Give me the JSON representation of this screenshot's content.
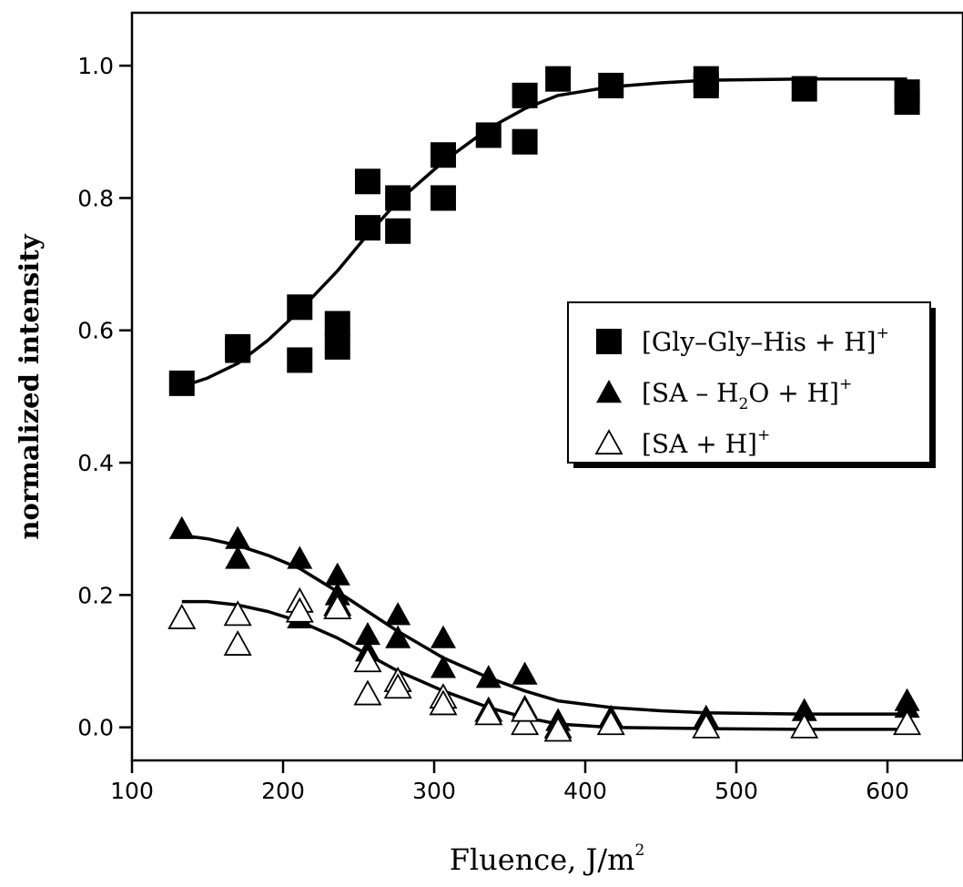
{
  "chart_data": {
    "type": "scatter",
    "title": "",
    "xlabel": "Fluence, J/m",
    "xlabel_sup": "2",
    "ylabel": "normalized intensity",
    "xlim": [
      100,
      650
    ],
    "ylim": [
      -0.05,
      1.08
    ],
    "xticks": [
      100,
      200,
      300,
      400,
      500,
      600
    ],
    "xtick_labels": [
      "100",
      "200",
      "300",
      "400",
      "500",
      "600"
    ],
    "yticks": [
      0.0,
      0.2,
      0.4,
      0.6,
      0.8,
      1.0
    ],
    "ytick_labels": [
      "0.0",
      "0.2",
      "0.4",
      "0.6",
      "0.8",
      "1.0"
    ],
    "grid": false,
    "legend_position": "center-right",
    "series": [
      {
        "name": "[Gly–Gly–His + H]+",
        "legend_parts": [
          {
            "t": "[Gly–Gly–His + H]",
            "style": "normal"
          },
          {
            "t": "+",
            "style": "sup"
          }
        ],
        "marker": "square-filled",
        "points": [
          [
            133,
            0.52
          ],
          [
            170,
            0.57
          ],
          [
            170,
            0.575
          ],
          [
            211,
            0.635
          ],
          [
            211,
            0.555
          ],
          [
            236,
            0.575
          ],
          [
            236,
            0.61
          ],
          [
            256,
            0.825
          ],
          [
            256,
            0.755
          ],
          [
            276,
            0.8
          ],
          [
            276,
            0.75
          ],
          [
            306,
            0.865
          ],
          [
            306,
            0.8
          ],
          [
            336,
            0.895
          ],
          [
            360,
            0.955
          ],
          [
            360,
            0.885
          ],
          [
            382,
            0.98
          ],
          [
            417,
            0.97
          ],
          [
            480,
            0.97
          ],
          [
            480,
            0.98
          ],
          [
            545,
            0.965
          ],
          [
            613,
            0.96
          ],
          [
            613,
            0.945
          ]
        ],
        "fit": [
          [
            133,
            0.515
          ],
          [
            150,
            0.528
          ],
          [
            170,
            0.55
          ],
          [
            190,
            0.585
          ],
          [
            211,
            0.63
          ],
          [
            236,
            0.69
          ],
          [
            256,
            0.745
          ],
          [
            276,
            0.795
          ],
          [
            306,
            0.855
          ],
          [
            336,
            0.905
          ],
          [
            360,
            0.935
          ],
          [
            382,
            0.955
          ],
          [
            417,
            0.968
          ],
          [
            450,
            0.974
          ],
          [
            480,
            0.978
          ],
          [
            545,
            0.98
          ],
          [
            613,
            0.98
          ]
        ]
      },
      {
        "name": "[SA – H2O + H]+",
        "legend_parts": [
          {
            "t": "[SA – H",
            "style": "normal"
          },
          {
            "t": "2",
            "style": "sub"
          },
          {
            "t": "O + H]",
            "style": "normal"
          },
          {
            "t": "+",
            "style": "sup"
          }
        ],
        "marker": "triangle-filled",
        "points": [
          [
            133,
            0.3
          ],
          [
            170,
            0.285
          ],
          [
            170,
            0.255
          ],
          [
            211,
            0.255
          ],
          [
            211,
            0.165
          ],
          [
            236,
            0.23
          ],
          [
            236,
            0.2
          ],
          [
            256,
            0.14
          ],
          [
            256,
            0.115
          ],
          [
            276,
            0.17
          ],
          [
            276,
            0.135
          ],
          [
            306,
            0.135
          ],
          [
            306,
            0.09
          ],
          [
            336,
            0.075
          ],
          [
            360,
            0.08
          ],
          [
            360,
            0.03
          ],
          [
            382,
            0.01
          ],
          [
            417,
            0.015
          ],
          [
            480,
            0.015
          ],
          [
            545,
            0.025
          ],
          [
            613,
            0.04
          ],
          [
            613,
            0.03
          ]
        ],
        "fit": [
          [
            133,
            0.29
          ],
          [
            150,
            0.285
          ],
          [
            170,
            0.275
          ],
          [
            190,
            0.26
          ],
          [
            211,
            0.24
          ],
          [
            236,
            0.205
          ],
          [
            256,
            0.175
          ],
          [
            276,
            0.145
          ],
          [
            306,
            0.105
          ],
          [
            336,
            0.075
          ],
          [
            360,
            0.055
          ],
          [
            382,
            0.04
          ],
          [
            417,
            0.03
          ],
          [
            450,
            0.025
          ],
          [
            480,
            0.022
          ],
          [
            545,
            0.02
          ],
          [
            613,
            0.02
          ]
        ]
      },
      {
        "name": "[SA + H]+",
        "legend_parts": [
          {
            "t": "[SA + H]",
            "style": "normal"
          },
          {
            "t": "+",
            "style": "sup"
          }
        ],
        "marker": "triangle-open",
        "points": [
          [
            133,
            0.165
          ],
          [
            170,
            0.17
          ],
          [
            170,
            0.125
          ],
          [
            211,
            0.19
          ],
          [
            211,
            0.175
          ],
          [
            236,
            0.185
          ],
          [
            236,
            0.18
          ],
          [
            256,
            0.1
          ],
          [
            256,
            0.05
          ],
          [
            276,
            0.07
          ],
          [
            276,
            0.06
          ],
          [
            306,
            0.045
          ],
          [
            306,
            0.035
          ],
          [
            336,
            0.025
          ],
          [
            336,
            0.02
          ],
          [
            360,
            0.005
          ],
          [
            360,
            0.025
          ],
          [
            382,
            0.0
          ],
          [
            382,
            -0.005
          ],
          [
            417,
            0.005
          ],
          [
            480,
            0.0
          ],
          [
            545,
            0.0
          ],
          [
            613,
            0.005
          ]
        ],
        "fit": [
          [
            133,
            0.19
          ],
          [
            150,
            0.19
          ],
          [
            170,
            0.185
          ],
          [
            190,
            0.175
          ],
          [
            211,
            0.16
          ],
          [
            236,
            0.135
          ],
          [
            256,
            0.11
          ],
          [
            276,
            0.085
          ],
          [
            306,
            0.055
          ],
          [
            336,
            0.03
          ],
          [
            360,
            0.015
          ],
          [
            382,
            0.005
          ],
          [
            417,
            0.0
          ],
          [
            480,
            -0.002
          ],
          [
            545,
            -0.003
          ],
          [
            613,
            -0.003
          ]
        ]
      }
    ]
  }
}
